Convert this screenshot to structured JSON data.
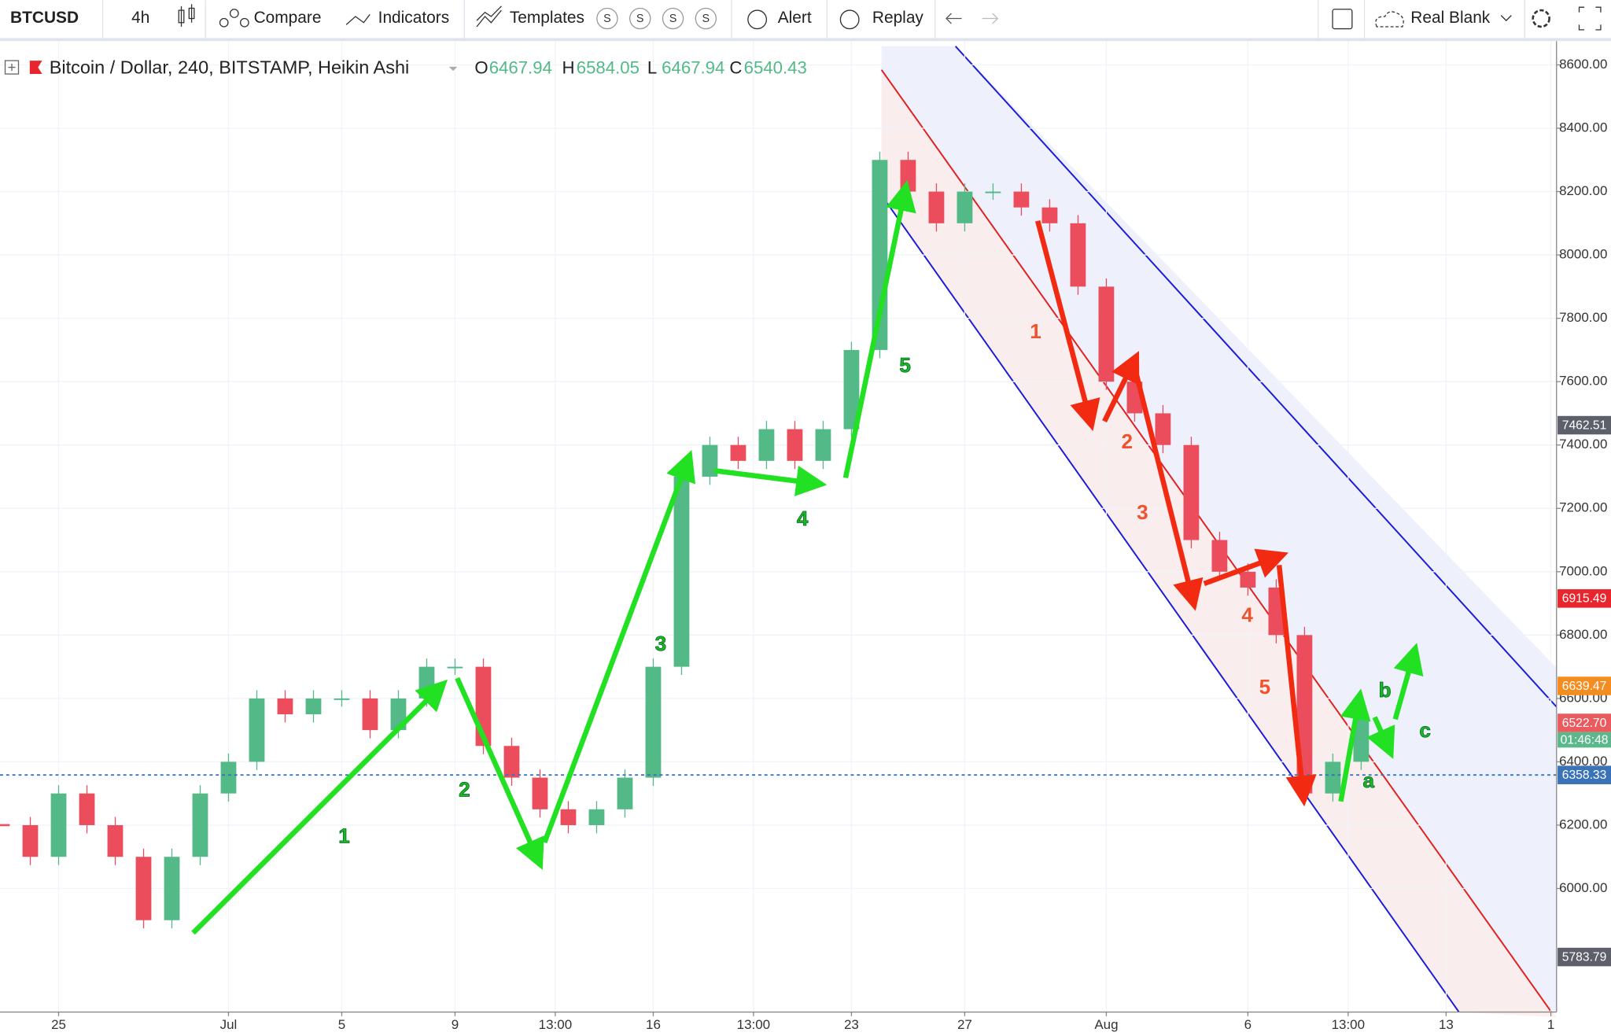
{
  "toolbar": {
    "symbol": "BTCUSD",
    "interval": "4h",
    "compare": "Compare",
    "indicators": "Indicators",
    "templates": "Templates",
    "template_slots": [
      "S",
      "S",
      "S",
      "S"
    ],
    "alert": "Alert",
    "replay": "Replay",
    "layout": "Real Blank"
  },
  "chart_data": {
    "type": "candlestick",
    "title": "Bitcoin / Dollar, 240, BITSTAMP, Heikin Ashi",
    "ohlc": [
      {
        "key": "O",
        "value": 6467.94
      },
      {
        "key": "H",
        "value": 6584.05
      },
      {
        "key": "L",
        "value": 6467.94
      },
      {
        "key": "C",
        "value": 6540.43
      }
    ],
    "x": [
      -2,
      -1,
      0,
      1,
      2,
      3,
      4,
      5,
      6,
      7,
      8,
      9,
      10,
      11,
      12,
      13,
      14,
      15,
      16,
      17,
      18,
      19,
      20,
      21,
      22,
      23,
      24,
      25,
      26,
      27,
      28,
      29,
      30,
      31,
      32,
      33,
      34,
      35,
      36,
      37,
      38,
      39,
      40,
      41,
      42,
      43,
      44,
      45,
      46
    ],
    "values": [
      6200,
      6100,
      6300,
      6200,
      6100,
      5900,
      6100,
      6300,
      6400,
      6600,
      6550,
      6600,
      6600,
      6500,
      6600,
      6700,
      6700,
      6450,
      6350,
      6250,
      6200,
      6250,
      6350,
      6700,
      7300,
      7400,
      7350,
      7450,
      7350,
      7450,
      7700,
      8300,
      8200,
      8100,
      8200,
      8200,
      8150,
      8100,
      7900,
      7600,
      7500,
      7400,
      7100,
      7000,
      6950,
      6800,
      6300,
      6400,
      6540
    ],
    "up_color": "#53b987",
    "down_color": "#eb4d5c",
    "xlim": [
      -2.07,
      52.9
    ],
    "xticks": [
      {
        "value": 0,
        "label": "25"
      },
      {
        "value": 6,
        "label": "Jul"
      },
      {
        "value": 10,
        "label": "5"
      },
      {
        "value": 14,
        "label": "9"
      },
      {
        "value": 17.54,
        "label": "13:00"
      },
      {
        "value": 21,
        "label": "16"
      },
      {
        "value": 24.54,
        "label": "13:00"
      },
      {
        "value": 28,
        "label": "23"
      },
      {
        "value": 32,
        "label": "27"
      },
      {
        "value": 37,
        "label": "Aug"
      },
      {
        "value": 42,
        "label": "6"
      },
      {
        "value": 45.54,
        "label": "13:00"
      },
      {
        "value": 49,
        "label": "13"
      },
      {
        "value": 52.7,
        "label": "1"
      }
    ],
    "ylim": [
      5610,
      8675
    ],
    "yticks": [
      {
        "value": 6000,
        "label": "6000.00"
      },
      {
        "value": 6200,
        "label": "6200.00"
      },
      {
        "value": 6400,
        "label": "6400.00"
      },
      {
        "value": 6600,
        "label": "6600.00"
      },
      {
        "value": 6800,
        "label": "6800.00"
      },
      {
        "value": 7000,
        "label": "7000.00"
      },
      {
        "value": 7200,
        "label": "7200.00"
      },
      {
        "value": 7400,
        "label": "7400.00"
      },
      {
        "value": 7600,
        "label": "7600.00"
      },
      {
        "value": 7800,
        "label": "7800.00"
      },
      {
        "value": 8000,
        "label": "8000.00"
      },
      {
        "value": 8200,
        "label": "8200.00"
      },
      {
        "value": 8400,
        "label": "8400.00"
      },
      {
        "value": 8600,
        "label": "8600.00"
      }
    ],
    "price_labels": [
      {
        "value": 7462.51,
        "color": "#5d606b"
      },
      {
        "value": 6915.49,
        "color": "#e8242c"
      },
      {
        "value": 6639.47,
        "color": "#f58c1f"
      },
      {
        "value": 6522.7,
        "label": "6522.70",
        "color": "#ea5b60",
        "countdown": "01:46:48"
      },
      {
        "value": 6358.33,
        "color": "#3b73b9"
      },
      {
        "value": 5783.79,
        "color": "#5d606b"
      }
    ],
    "annotations": [
      {
        "text": "1",
        "color": "#1db81d"
      },
      {
        "text": "2",
        "color": "#1db81d"
      },
      {
        "text": "3",
        "color": "#1db81d"
      },
      {
        "text": "4",
        "color": "#1db81d"
      },
      {
        "text": "5",
        "color": "#1db81d"
      },
      {
        "text": "1",
        "color": "#f0522e"
      },
      {
        "text": "2",
        "color": "#f0522e"
      },
      {
        "text": "3",
        "color": "#f0522e"
      },
      {
        "text": "4",
        "color": "#f0522e"
      },
      {
        "text": "5",
        "color": "#f0522e"
      },
      {
        "text": "a",
        "color": "#1db81d"
      },
      {
        "text": "b",
        "color": "#1db81d"
      },
      {
        "text": "c",
        "color": "#1db81d"
      }
    ]
  }
}
